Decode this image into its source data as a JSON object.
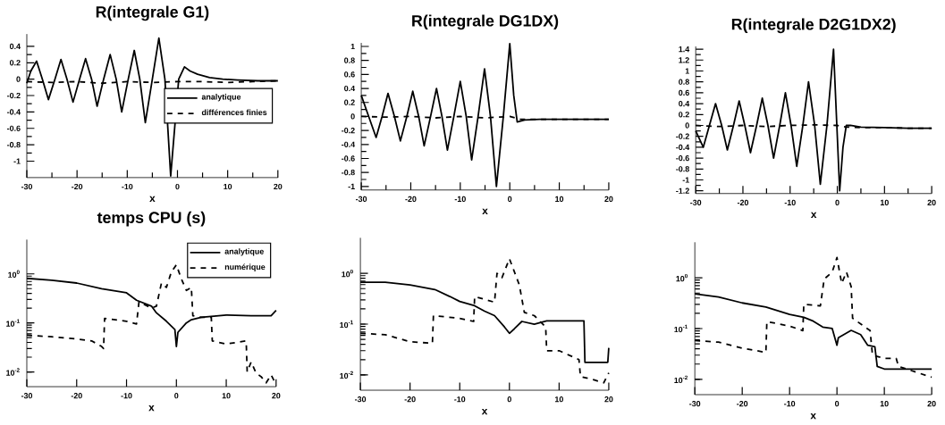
{
  "chart_data": [
    {
      "type": "line",
      "title": "R(integrale G1)",
      "xlabel": "x",
      "xlim": [
        -30,
        20
      ],
      "ylim": [
        -1.2,
        0.55
      ],
      "xticks": [
        -30,
        -20,
        -10,
        0,
        10,
        20
      ],
      "yticks": [
        -1,
        -0.8,
        -0.6,
        -0.4,
        -0.2,
        0,
        0.2,
        0.4
      ],
      "legend": "right",
      "series": [
        {
          "name": "analytique",
          "color": "#000000",
          "line_style": "solid",
          "x": [
            -30,
            -29.2,
            -28.05,
            -26.9,
            -25.7,
            -24.4,
            -23.2,
            -22,
            -20.8,
            -19.5,
            -18.3,
            -17.1,
            -16,
            -14.7,
            -13.4,
            -12.2,
            -11.1,
            -9.8,
            -8.6,
            -7.5,
            -6.4,
            -5,
            -3.7,
            -2.5,
            -1.35,
            0.25,
            1.4,
            2.5,
            4,
            6.4,
            9,
            12,
            16,
            20
          ],
          "values": [
            -0.05,
            0.1,
            0.22,
            0,
            -0.25,
            0,
            0.24,
            0,
            -0.28,
            0,
            0.25,
            0,
            -0.33,
            0,
            0.3,
            0,
            -0.4,
            0,
            0.35,
            0,
            -0.53,
            0,
            0.5,
            0,
            -1.18,
            0,
            0.15,
            0.1,
            0.06,
            0.02,
            0.0,
            -0.01,
            -0.02,
            -0.02
          ]
        },
        {
          "name": "différences finies",
          "color": "#000000",
          "line_style": "dashed",
          "x": [
            -30,
            -25,
            -20,
            -15,
            -10,
            -5,
            0,
            5,
            10,
            15,
            20
          ],
          "values": [
            -0.03,
            -0.04,
            -0.03,
            -0.05,
            -0.03,
            -0.04,
            -0.03,
            -0.03,
            -0.04,
            -0.03,
            -0.02
          ]
        }
      ]
    },
    {
      "type": "line",
      "title": "R(integrale DG1DX)",
      "xlabel": "x",
      "xlim": [
        -30,
        20
      ],
      "ylim": [
        -1.05,
        1.05
      ],
      "xticks": [
        -30,
        -20,
        -10,
        0,
        10,
        20
      ],
      "yticks": [
        -1,
        -0.8,
        -0.6,
        -0.4,
        -0.2,
        0,
        0.2,
        0.4,
        0.6,
        0.8,
        1
      ],
      "series": [
        {
          "color": "#000000",
          "line_style": "solid",
          "x": [
            -30,
            -28.5,
            -27,
            -25.8,
            -24.6,
            -23.3,
            -22.1,
            -20.8,
            -19.6,
            -18.4,
            -17.3,
            -16,
            -14.8,
            -13.7,
            -12.6,
            -11.3,
            -10,
            -8.8,
            -7.7,
            -6.4,
            -5.1,
            -3.9,
            -2.7,
            -1.3,
            0,
            0.8,
            1.5,
            3,
            6,
            10,
            15,
            20
          ],
          "values": [
            0.3,
            0,
            -0.3,
            0,
            0.33,
            0,
            -0.35,
            0,
            0.36,
            0,
            -0.42,
            0,
            0.4,
            0,
            -0.48,
            0,
            0.5,
            0,
            -0.62,
            0,
            0.68,
            0,
            -1.0,
            0,
            1.04,
            0.3,
            -0.08,
            -0.05,
            -0.04,
            -0.04,
            -0.04,
            -0.04
          ]
        },
        {
          "color": "#000000",
          "line_style": "dashed",
          "x": [
            -30,
            -25,
            -20,
            -15,
            -10,
            -5,
            0,
            2,
            5,
            10,
            15,
            20
          ],
          "values": [
            0,
            -0.01,
            0,
            -0.02,
            0,
            -0.02,
            0,
            -0.04,
            -0.04,
            -0.04,
            -0.04,
            -0.04
          ]
        }
      ]
    },
    {
      "type": "line",
      "title": "R(integrale D2G1DX2)",
      "xlabel": "x",
      "xlim": [
        -30,
        20
      ],
      "ylim": [
        -1.25,
        1.45
      ],
      "xticks": [
        -30,
        -20,
        -10,
        0,
        10,
        20
      ],
      "yticks": [
        -1.2,
        -1,
        -0.8,
        -0.6,
        -0.4,
        -0.2,
        0,
        0.2,
        0.4,
        0.6,
        0.8,
        1,
        1.2,
        1.4
      ],
      "series": [
        {
          "color": "#000000",
          "line_style": "solid",
          "x": [
            -30,
            -28.4,
            -27.1,
            -25.8,
            -24.5,
            -23.3,
            -22,
            -20.8,
            -19.6,
            -18.4,
            -17.1,
            -15.9,
            -14.7,
            -13.5,
            -12.2,
            -11,
            -9.8,
            -8.6,
            -7.3,
            -6.1,
            -4.8,
            -3.6,
            -2.2,
            -0.8,
            -0.1,
            0.5,
            1.2,
            1.9,
            2.8,
            5,
            10,
            15,
            20
          ],
          "values": [
            -0.1,
            -0.4,
            0,
            0.4,
            0,
            -0.45,
            0,
            0.45,
            0,
            -0.5,
            0,
            0.5,
            0,
            -0.6,
            0,
            0.6,
            0,
            -0.75,
            0,
            0.8,
            0,
            -1.08,
            0,
            1.4,
            0,
            -1.2,
            -0.4,
            0,
            0.0,
            -0.03,
            -0.04,
            -0.05,
            -0.05
          ]
        },
        {
          "color": "#000000",
          "line_style": "dashed",
          "x": [
            -30,
            -25,
            -20,
            -15,
            -10,
            -5,
            0,
            2,
            5,
            10,
            15,
            20
          ],
          "values": [
            0,
            -0.02,
            0,
            -0.02,
            0,
            0.01,
            0,
            -0.03,
            -0.04,
            -0.04,
            -0.05,
            -0.05
          ]
        }
      ]
    },
    {
      "type": "line",
      "title": "temps CPU (s)",
      "xlabel": "x",
      "log": "y",
      "xlim": [
        -30,
        20
      ],
      "ylim": [
        0.005,
        5
      ],
      "xticks": [
        -30,
        -20,
        -10,
        0,
        10,
        20
      ],
      "yticks": [
        {
          "value": 0.01,
          "label": "10$^{-2}$"
        },
        {
          "value": 0.1,
          "label": "10$^{-1}$"
        },
        {
          "value": 1,
          "label": "10$^{0}$"
        }
      ],
      "legend": "top right",
      "series": [
        {
          "name": "analytique",
          "color": "#000000",
          "line_style": "solid",
          "x": [
            -30,
            -25,
            -20,
            -15,
            -10,
            -8,
            -5,
            -4,
            -2,
            -0.3,
            0,
            0.3,
            2,
            3,
            5,
            10,
            15,
            19,
            20
          ],
          "values": [
            0.81,
            0.74,
            0.65,
            0.5,
            0.41,
            0.29,
            0.22,
            0.16,
            0.108,
            0.073,
            0.033,
            0.064,
            0.1,
            0.116,
            0.13,
            0.145,
            0.14,
            0.14,
            0.18
          ]
        },
        {
          "name": "numérique",
          "color": "#000000",
          "line_style": "dashed",
          "x": [
            -30,
            -25,
            -20,
            -17,
            -15,
            -14.6,
            -14.4,
            -10,
            -8,
            -7.5,
            -5,
            -4,
            -3,
            -2,
            -1,
            0,
            1,
            2,
            3,
            3.3,
            5,
            7,
            7.2,
            10,
            14,
            14.2,
            15,
            16,
            17,
            18,
            19,
            20
          ],
          "values": [
            0.056,
            0.052,
            0.047,
            0.043,
            0.033,
            0.03,
            0.123,
            0.108,
            0.095,
            0.27,
            0.2,
            0.22,
            0.65,
            0.53,
            1.1,
            1.53,
            0.79,
            0.46,
            0.53,
            0.14,
            0.13,
            0.13,
            0.043,
            0.037,
            0.043,
            0.01,
            0.016,
            0.0094,
            0.008,
            0.006,
            0.0087,
            0.0055
          ]
        }
      ]
    },
    {
      "type": "line",
      "xlabel": "x",
      "log": "y",
      "xlim": [
        -30,
        20
      ],
      "ylim": [
        0.005,
        5
      ],
      "xticks": [
        -30,
        -20,
        -10,
        0,
        10,
        20
      ],
      "yticks": [
        {
          "value": 0.01,
          "label": "10$^{-2}$"
        },
        {
          "value": 0.1,
          "label": "10$^{-1}$"
        },
        {
          "value": 1,
          "label": "10$^{0}$"
        }
      ],
      "series": [
        {
          "color": "#000000",
          "line_style": "solid",
          "x": [
            -30,
            -25,
            -20,
            -15,
            -12,
            -10,
            -7,
            -5,
            -3,
            -1,
            0,
            1,
            2.5,
            5,
            7.5,
            15,
            15.2,
            17,
            19.8,
            20
          ],
          "values": [
            0.67,
            0.67,
            0.59,
            0.48,
            0.35,
            0.28,
            0.23,
            0.18,
            0.147,
            0.088,
            0.066,
            0.081,
            0.113,
            0.1,
            0.116,
            0.116,
            0.0177,
            0.0177,
            0.0177,
            0.034
          ]
        },
        {
          "color": "#000000",
          "line_style": "dashed",
          "x": [
            -30,
            -25,
            -20,
            -15.5,
            -15.3,
            -10,
            -7.2,
            -7,
            -3,
            -2.5,
            -1.5,
            0,
            2,
            3,
            5,
            7.3,
            7.5,
            10,
            14,
            14.3,
            17,
            19,
            20
          ],
          "values": [
            0.066,
            0.062,
            0.045,
            0.042,
            0.147,
            0.13,
            0.113,
            0.35,
            0.27,
            1.0,
            0.82,
            1.94,
            0.59,
            0.17,
            0.147,
            0.088,
            0.03,
            0.03,
            0.02,
            0.0093,
            0.008,
            0.007,
            0.011
          ]
        }
      ]
    },
    {
      "type": "line",
      "xlabel": "x",
      "log": "y",
      "xlim": [
        -30,
        20
      ],
      "ylim": [
        0.005,
        5
      ],
      "xticks": [
        -30,
        -20,
        -10,
        0,
        10,
        20
      ],
      "yticks": [
        {
          "value": 0.01,
          "label": "10$^{-2}$"
        },
        {
          "value": 0.1,
          "label": "10$^{-1}$"
        },
        {
          "value": 1,
          "label": "10$^{0}$"
        }
      ],
      "series": [
        {
          "color": "#000000",
          "line_style": "solid",
          "x": [
            -30,
            -25,
            -20,
            -15,
            -10,
            -7,
            -5,
            -3,
            -1,
            0,
            0.3,
            3,
            5,
            6.5,
            8,
            8.5,
            10,
            15,
            20
          ],
          "values": [
            0.48,
            0.42,
            0.32,
            0.265,
            0.19,
            0.167,
            0.14,
            0.107,
            0.1,
            0.047,
            0.066,
            0.092,
            0.076,
            0.047,
            0.044,
            0.018,
            0.016,
            0.016,
            0.016
          ]
        },
        {
          "color": "#000000",
          "line_style": "dashed",
          "x": [
            -30,
            -25,
            -20,
            -15,
            -14.8,
            -10,
            -7.2,
            -7,
            -3.5,
            -2.7,
            -1,
            0,
            1,
            2,
            3,
            3.3,
            7,
            7.5,
            10,
            12.5,
            13,
            20
          ],
          "values": [
            0.058,
            0.054,
            0.041,
            0.034,
            0.137,
            0.112,
            0.091,
            0.3,
            0.28,
            0.94,
            1.3,
            2.5,
            0.77,
            1.3,
            0.67,
            0.16,
            0.091,
            0.03,
            0.026,
            0.026,
            0.018,
            0.011
          ]
        }
      ]
    }
  ]
}
